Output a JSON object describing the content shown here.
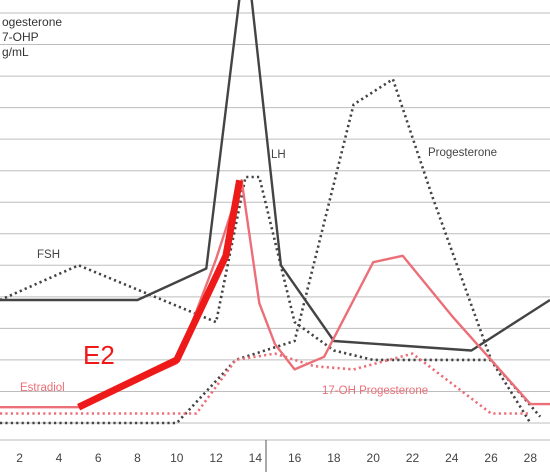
{
  "chart_data": {
    "type": "line",
    "y_axis_title_lines": [
      "ogesterone",
      "7-OHP",
      "g/mL"
    ],
    "x_ticks": [
      2,
      4,
      6,
      8,
      10,
      12,
      14,
      16,
      18,
      20,
      22,
      24,
      26,
      28
    ],
    "xlim": [
      1.0,
      29.0
    ],
    "ylim": [
      0,
      13
    ],
    "grid": true,
    "series": [
      {
        "name": "LH",
        "color": "#444444",
        "style": "solid",
        "x": [
          1,
          8,
          11.5,
          13.2,
          13.8,
          15.3,
          18,
          25,
          29
        ],
        "y": [
          3.9,
          3.9,
          4.9,
          13.5,
          13.5,
          5.0,
          2.6,
          2.3,
          3.9
        ]
      },
      {
        "name": "FSH",
        "color": "#444444",
        "style": "dotted",
        "x": [
          1,
          5,
          12,
          13.5,
          14.2,
          16,
          18,
          20,
          26,
          28.5
        ],
        "y": [
          3.9,
          5.0,
          3.2,
          7.8,
          7.8,
          3.2,
          2.3,
          2.0,
          2.0,
          0.2
        ]
      },
      {
        "name": "Progesterone",
        "color": "#444444",
        "style": "dotted",
        "x": [
          1,
          10,
          13,
          16,
          19,
          21,
          23,
          26,
          28
        ],
        "y": [
          0.0,
          0.0,
          2.0,
          2.6,
          10.1,
          10.9,
          7.2,
          2.0,
          0.0
        ]
      },
      {
        "name": "Estradiol",
        "color": "#ec6f78",
        "style": "solid",
        "x": [
          1,
          5,
          10,
          12,
          13.3,
          14.2,
          15,
          16,
          17.5,
          20,
          21.5,
          24,
          28,
          29
        ],
        "y": [
          0.5,
          0.5,
          1.9,
          5.2,
          7.7,
          3.8,
          2.5,
          1.7,
          2.1,
          5.1,
          5.3,
          3.4,
          0.6,
          0.6
        ]
      },
      {
        "name": "17-OH Progesterone",
        "color": "#ec6f78",
        "style": "dotted",
        "x": [
          1,
          11,
          13,
          15,
          17,
          19,
          22,
          26,
          28
        ],
        "y": [
          0.3,
          0.3,
          2.0,
          2.2,
          1.8,
          1.7,
          2.2,
          0.3,
          0.3
        ]
      },
      {
        "name": "E2",
        "color": "#ee1a1a",
        "style": "bold",
        "x": [
          5,
          10,
          12.5,
          13.2
        ],
        "y": [
          0.5,
          2.0,
          5.3,
          7.7
        ]
      }
    ],
    "labels": [
      {
        "text": "FSH",
        "series": "FSH"
      },
      {
        "text": "LH",
        "series": "LH"
      },
      {
        "text": "Progesterone",
        "series": "Progesterone"
      },
      {
        "text": "Estradiol",
        "series": "Estradiol"
      },
      {
        "text": "17-OH Progesterone",
        "series": "17-OH Progesterone"
      },
      {
        "text": "E2",
        "series": "E2"
      }
    ]
  }
}
